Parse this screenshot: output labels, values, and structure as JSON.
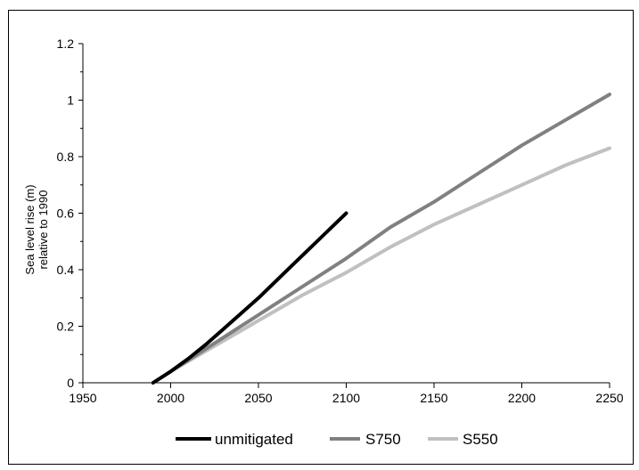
{
  "chart_data": {
    "type": "line",
    "title": "",
    "xlabel": "",
    "ylabel": [
      "Sea level rise (m)",
      "relative to 1990"
    ],
    "xlim": [
      1950,
      2250
    ],
    "ylim": [
      0,
      1.2
    ],
    "x_ticks": [
      "1950",
      "2000",
      "2050",
      "2100",
      "2150",
      "2200",
      "2250"
    ],
    "y_ticks": [
      "0",
      "0.2",
      "0.4",
      "0.6",
      "0.8",
      "1",
      "1.2"
    ],
    "grid": false,
    "legend_placement": "bottom",
    "series": [
      {
        "name": "unmitigated",
        "color": "#000000",
        "points": [
          [
            1990,
            0
          ],
          [
            2000,
            0.04
          ],
          [
            2010,
            0.085
          ],
          [
            2020,
            0.135
          ],
          [
            2030,
            0.19
          ],
          [
            2040,
            0.245
          ],
          [
            2050,
            0.3
          ],
          [
            2060,
            0.36
          ],
          [
            2070,
            0.42
          ],
          [
            2080,
            0.48
          ],
          [
            2090,
            0.54
          ],
          [
            2100,
            0.6
          ]
        ]
      },
      {
        "name": "S750",
        "color": "#808080",
        "points": [
          [
            1990,
            0
          ],
          [
            2000,
            0.04
          ],
          [
            2025,
            0.14
          ],
          [
            2050,
            0.24
          ],
          [
            2075,
            0.34
          ],
          [
            2100,
            0.44
          ],
          [
            2125,
            0.55
          ],
          [
            2150,
            0.64
          ],
          [
            2175,
            0.74
          ],
          [
            2200,
            0.84
          ],
          [
            2225,
            0.93
          ],
          [
            2250,
            1.02
          ]
        ]
      },
      {
        "name": "S550",
        "color": "#c0c0c0",
        "points": [
          [
            1990,
            0
          ],
          [
            2000,
            0.04
          ],
          [
            2025,
            0.13
          ],
          [
            2050,
            0.22
          ],
          [
            2075,
            0.31
          ],
          [
            2100,
            0.39
          ],
          [
            2125,
            0.48
          ],
          [
            2150,
            0.56
          ],
          [
            2175,
            0.63
          ],
          [
            2200,
            0.7
          ],
          [
            2225,
            0.77
          ],
          [
            2250,
            0.83
          ]
        ]
      }
    ]
  }
}
